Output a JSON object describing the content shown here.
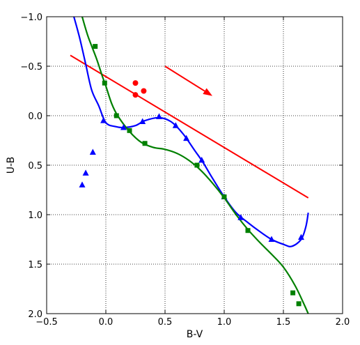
{
  "chart_data": {
    "type": "scatter",
    "xlabel": "B-V",
    "ylabel": "U-B",
    "xlim": [
      -0.5,
      2.0
    ],
    "ylim": [
      2.0,
      -1.0
    ],
    "y_inverted": true,
    "grid": true,
    "grid_style": "dotted",
    "x_ticks": [
      -0.5,
      0.0,
      0.5,
      1.0,
      1.5,
      2.0
    ],
    "y_ticks": [
      -1.0,
      -0.5,
      0.0,
      0.5,
      1.0,
      1.5,
      2.0
    ],
    "x_tick_labels": [
      "−0.5",
      "0.0",
      "0.5",
      "1.0",
      "1.5",
      "2.0"
    ],
    "y_tick_labels": [
      "−1.0",
      "−0.5",
      "0.0",
      "0.5",
      "1.0",
      "1.5",
      "2.0"
    ],
    "series": [
      {
        "color": "#0000ff",
        "marker": "triangle",
        "curve": [
          [
            -0.27,
            -1.0
          ],
          [
            -0.22,
            -0.78
          ],
          [
            -0.17,
            -0.52
          ],
          [
            -0.12,
            -0.26
          ],
          [
            -0.06,
            -0.1
          ],
          [
            0.0,
            0.07
          ],
          [
            0.08,
            0.11
          ],
          [
            0.15,
            0.12
          ],
          [
            0.25,
            0.1
          ],
          [
            0.33,
            0.05
          ],
          [
            0.45,
            0.02
          ],
          [
            0.55,
            0.06
          ],
          [
            0.65,
            0.18
          ],
          [
            0.75,
            0.35
          ],
          [
            0.82,
            0.47
          ],
          [
            0.9,
            0.63
          ],
          [
            1.0,
            0.82
          ],
          [
            1.1,
            0.98
          ],
          [
            1.2,
            1.08
          ],
          [
            1.3,
            1.17
          ],
          [
            1.4,
            1.25
          ],
          [
            1.5,
            1.3
          ],
          [
            1.57,
            1.32
          ],
          [
            1.65,
            1.25
          ],
          [
            1.69,
            1.12
          ],
          [
            1.71,
            0.98
          ]
        ],
        "points": [
          [
            -0.2,
            0.7
          ],
          [
            -0.17,
            0.58
          ],
          [
            -0.11,
            0.37
          ],
          [
            -0.02,
            0.05
          ],
          [
            0.15,
            0.12
          ],
          [
            0.31,
            0.06
          ],
          [
            0.45,
            0.01
          ],
          [
            0.59,
            0.1
          ],
          [
            0.68,
            0.23
          ],
          [
            0.81,
            0.45
          ],
          [
            1.0,
            0.82
          ],
          [
            1.14,
            1.03
          ],
          [
            1.4,
            1.25
          ],
          [
            1.65,
            1.23
          ]
        ]
      },
      {
        "color": "#008000",
        "marker": "square",
        "curve": [
          [
            -0.2,
            -1.0
          ],
          [
            -0.15,
            -0.8
          ],
          [
            -0.08,
            -0.58
          ],
          [
            -0.03,
            -0.4
          ],
          [
            0.0,
            -0.3
          ],
          [
            0.05,
            -0.12
          ],
          [
            0.1,
            0.0
          ],
          [
            0.2,
            0.16
          ],
          [
            0.3,
            0.27
          ],
          [
            0.4,
            0.32
          ],
          [
            0.5,
            0.34
          ],
          [
            0.6,
            0.38
          ],
          [
            0.7,
            0.45
          ],
          [
            0.8,
            0.55
          ],
          [
            0.9,
            0.68
          ],
          [
            1.0,
            0.83
          ],
          [
            1.1,
            1.0
          ],
          [
            1.2,
            1.15
          ],
          [
            1.3,
            1.28
          ],
          [
            1.4,
            1.4
          ],
          [
            1.5,
            1.53
          ],
          [
            1.6,
            1.72
          ],
          [
            1.68,
            1.92
          ],
          [
            1.72,
            2.03
          ]
        ],
        "points": [
          [
            -0.09,
            -0.7
          ],
          [
            -0.01,
            -0.33
          ],
          [
            0.09,
            0.0
          ],
          [
            0.2,
            0.15
          ],
          [
            0.33,
            0.28
          ],
          [
            0.77,
            0.5
          ],
          [
            1.0,
            0.82
          ],
          [
            1.2,
            1.16
          ],
          [
            1.58,
            1.79
          ],
          [
            1.63,
            1.9
          ]
        ]
      },
      {
        "color": "#ff0000",
        "marker": "circle",
        "points": [
          [
            0.25,
            -0.33
          ],
          [
            0.32,
            -0.25
          ],
          [
            0.25,
            -0.21
          ]
        ]
      }
    ],
    "annotations": [
      {
        "type": "line",
        "color": "#ff0000",
        "from": [
          -0.3,
          -0.61
        ],
        "to": [
          1.71,
          0.83
        ]
      },
      {
        "type": "arrow",
        "color": "#ff0000",
        "from": [
          0.5,
          -0.5
        ],
        "to": [
          0.9,
          -0.2
        ]
      }
    ]
  }
}
